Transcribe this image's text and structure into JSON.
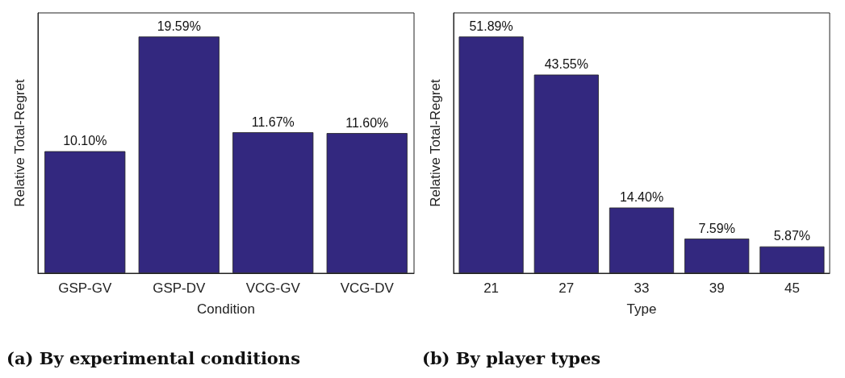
{
  "chart_data": [
    {
      "type": "bar",
      "categories": [
        "GSP-GV",
        "GSP-DV",
        "VCG-GV",
        "VCG-DV"
      ],
      "values": [
        10.1,
        19.59,
        11.67,
        11.6
      ],
      "color": "#33287f",
      "xlabel": "Condition",
      "ylabel": "Relative Total-Regret",
      "value_labels": [
        "10.10%",
        "19.59%",
        "11.67%",
        "11.60%"
      ],
      "annotations": [
        "(a) By experimental conditions"
      ]
    },
    {
      "type": "bar",
      "categories": [
        "21",
        "27",
        "33",
        "39",
        "45"
      ],
      "values": [
        51.89,
        43.55,
        14.4,
        7.59,
        5.87
      ],
      "color": "#33287f",
      "xlabel": "Type",
      "ylabel": "Relative Total-Regret",
      "value_labels": [
        "51.89%",
        "43.55%",
        "14.40%",
        "7.59%",
        "5.87%"
      ],
      "annotations": [
        "(b) By player types"
      ]
    }
  ]
}
